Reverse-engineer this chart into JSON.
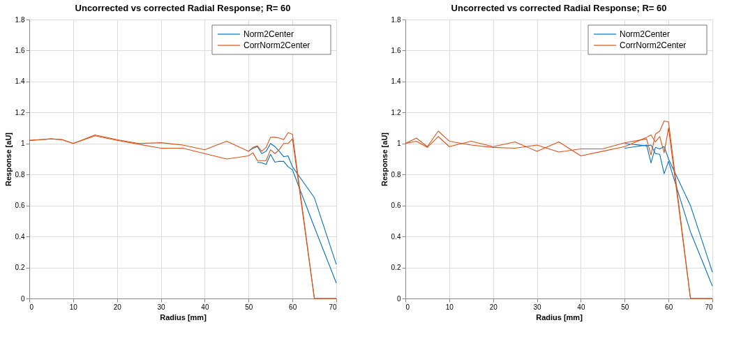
{
  "chart_data": [
    {
      "type": "line",
      "title": "Uncorrected vs corrected Radial Response; R= 60",
      "xlabel": "Radius [mm]",
      "ylabel": "Response [aU]",
      "x": [
        0,
        2.5,
        5,
        7.5,
        10,
        15,
        20,
        25,
        30,
        35,
        40,
        45,
        50,
        51,
        52,
        53,
        54,
        55,
        56,
        57,
        58,
        59,
        60,
        65,
        70
      ],
      "xlim": [
        0,
        70
      ],
      "xticks": [
        0,
        10,
        20,
        30,
        40,
        50,
        60,
        70
      ],
      "ylim": [
        0,
        1.8
      ],
      "yticks": [
        0,
        0.2,
        0.4,
        0.6,
        0.8,
        1,
        1.2,
        1.4,
        1.6,
        1.8
      ],
      "grid": true,
      "legend": "top right",
      "series": [
        {
          "name": "Norm2Center",
          "color": "#0072bd",
          "values": [
            null,
            null,
            null,
            null,
            null,
            null,
            null,
            null,
            null,
            null,
            null,
            null,
            0.95,
            0.97,
            0.98,
            0.935,
            0.95,
            1.0,
            0.98,
            0.95,
            0.915,
            0.92,
            0.85,
            0.65,
            0.22
          ]
        },
        {
          "color": "#0072bd",
          "values": [
            null,
            null,
            null,
            null,
            null,
            null,
            null,
            null,
            null,
            null,
            null,
            null,
            null,
            null,
            0.88,
            0.875,
            0.865,
            0.93,
            0.88,
            0.885,
            0.885,
            0.85,
            0.83,
            0.46,
            0.1
          ]
        },
        {
          "name": "CorrNorm2Center",
          "color": "#d95319",
          "values": [
            1.02,
            1.025,
            1.03,
            1.025,
            1.0,
            1.055,
            1.025,
            1.0,
            1.005,
            0.99,
            0.96,
            1.015,
            0.95,
            0.975,
            0.985,
            0.95,
            0.975,
            1.04,
            1.04,
            1.035,
            1.025,
            1.07,
            1.06,
            0,
            0
          ]
        },
        {
          "color": "#d95319",
          "values": [
            1.02,
            1.025,
            1.03,
            1.025,
            1.0,
            1.05,
            1.02,
            0.995,
            0.97,
            0.97,
            0.935,
            0.9,
            0.92,
            0.94,
            0.89,
            0.89,
            0.89,
            0.96,
            0.935,
            0.96,
            1.0,
            1.0,
            1.03,
            0,
            0
          ]
        }
      ]
    },
    {
      "type": "line",
      "title": "Uncorrected vs corrected Radial Response; R= 60",
      "xlabel": "Radius [mm]",
      "ylabel": "Response [aU]",
      "x": [
        0,
        2.5,
        5,
        7.5,
        10,
        15,
        20,
        25,
        30,
        35,
        40,
        45,
        50,
        55,
        56,
        57,
        58,
        59,
        60,
        65,
        70
      ],
      "xlim": [
        0,
        70
      ],
      "xticks": [
        0,
        10,
        20,
        30,
        40,
        50,
        60,
        70
      ],
      "ylim": [
        0,
        1.8
      ],
      "yticks": [
        0,
        0.2,
        0.4,
        0.6,
        0.8,
        1,
        1.2,
        1.4,
        1.6,
        1.8
      ],
      "grid": true,
      "legend": "top right",
      "series": [
        {
          "name": "Norm2Center",
          "color": "#0072bd",
          "values": [
            null,
            null,
            null,
            null,
            null,
            null,
            null,
            null,
            null,
            null,
            null,
            null,
            0.97,
            0.99,
            0.875,
            0.975,
            0.965,
            0.98,
            0.9,
            0.6,
            0.17
          ]
        },
        {
          "color": "#0072bd",
          "values": [
            null,
            null,
            null,
            null,
            null,
            null,
            null,
            null,
            null,
            null,
            null,
            null,
            1.0,
            0.985,
            0.99,
            0.935,
            0.93,
            0.805,
            0.885,
            0.43,
            0.08
          ]
        },
        {
          "name": "CorrNorm2Center",
          "color": "#d95319",
          "values": [
            1.0,
            1.035,
            0.98,
            1.08,
            1.015,
            0.99,
            0.975,
            0.97,
            0.99,
            0.945,
            0.965,
            0.965,
            1.005,
            1.03,
            0.925,
            1.06,
            1.08,
            1.145,
            1.14,
            0,
            0
          ]
        },
        {
          "color": "#d95319",
          "values": [
            1.0,
            1.015,
            0.975,
            1.045,
            0.98,
            1.015,
            0.98,
            1.01,
            0.95,
            1.01,
            0.92,
            0.95,
            0.98,
            1.04,
            1.055,
            1.01,
            1.045,
            0.94,
            1.1,
            0,
            0
          ]
        }
      ]
    }
  ]
}
